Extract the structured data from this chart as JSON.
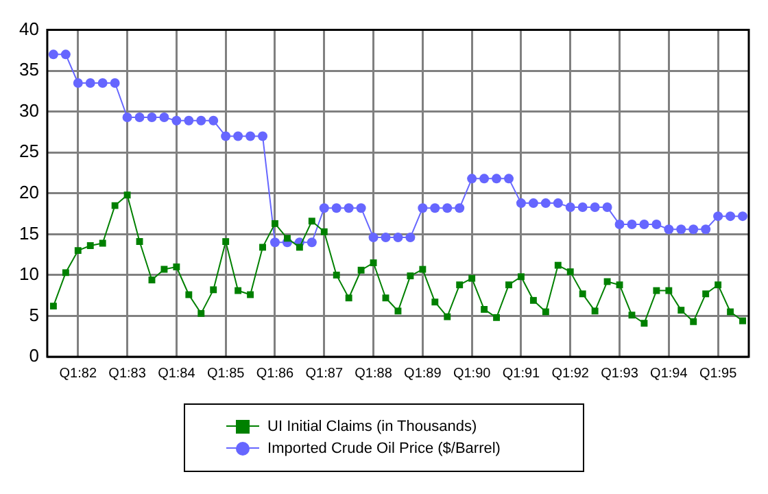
{
  "chart_data": {
    "type": "line",
    "categories": [
      null,
      null,
      "Q1:82",
      null,
      null,
      null,
      "Q1:83",
      null,
      null,
      null,
      "Q1:84",
      null,
      null,
      null,
      "Q1:85",
      null,
      null,
      null,
      "Q1:86",
      null,
      null,
      null,
      "Q1:87",
      null,
      null,
      null,
      "Q1:88",
      null,
      null,
      null,
      "Q1:89",
      null,
      null,
      null,
      "Q1:90",
      null,
      null,
      null,
      "Q1:91",
      null,
      null,
      null,
      "Q1:92",
      null,
      null,
      null,
      "Q1:93",
      null,
      null,
      null,
      "Q1:94",
      null,
      null,
      null,
      "Q1:95",
      null,
      null
    ],
    "series": [
      {
        "name": "UI Initial Claims (in Thousands)",
        "color": "#008000",
        "marker": "square",
        "values": [
          6.2,
          10.3,
          13.0,
          13.6,
          13.9,
          18.5,
          19.8,
          14.1,
          9.4,
          10.7,
          11.0,
          7.6,
          5.3,
          8.2,
          14.1,
          8.1,
          7.6,
          13.4,
          16.3,
          14.5,
          13.4,
          16.6,
          15.3,
          10.0,
          7.2,
          10.6,
          11.5,
          7.2,
          5.6,
          9.9,
          10.7,
          6.7,
          4.9,
          8.8,
          9.6,
          5.8,
          4.8,
          8.8,
          9.8,
          6.9,
          5.5,
          11.2,
          10.4,
          7.7,
          5.6,
          9.2,
          8.8,
          5.1,
          4.1,
          8.1,
          8.1,
          5.7,
          4.3,
          7.7,
          8.8,
          5.5,
          4.4
        ]
      },
      {
        "name": "Imported Crude Oil Price ($/Barrel)",
        "color": "#6666ff",
        "marker": "circle",
        "values": [
          37.0,
          37.0,
          33.5,
          33.5,
          33.5,
          33.5,
          29.3,
          29.3,
          29.3,
          29.3,
          28.9,
          28.9,
          28.9,
          28.9,
          27.0,
          27.0,
          27.0,
          27.0,
          14.0,
          14.0,
          14.0,
          14.0,
          18.2,
          18.2,
          18.2,
          18.2,
          14.6,
          14.6,
          14.6,
          14.6,
          18.2,
          18.2,
          18.2,
          18.2,
          21.8,
          21.8,
          21.8,
          21.8,
          18.8,
          18.8,
          18.8,
          18.8,
          18.3,
          18.3,
          18.3,
          18.3,
          16.2,
          16.2,
          16.2,
          16.2,
          15.6,
          15.6,
          15.6,
          15.6,
          17.2,
          17.2,
          17.2
        ]
      }
    ],
    "ylim": [
      0,
      40
    ],
    "yticks": [
      0,
      5,
      10,
      15,
      20,
      25,
      30,
      35,
      40
    ],
    "grid": true,
    "legend": "bottom"
  }
}
